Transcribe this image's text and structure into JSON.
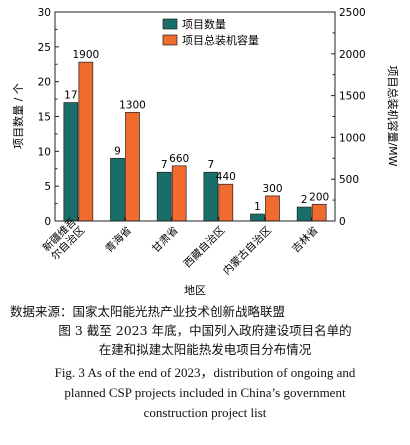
{
  "chart_data": {
    "type": "bar",
    "categories": [
      "新疆维吾尔自治区",
      "青海省",
      "甘肃省",
      "西藏自治区",
      "内蒙古自治区",
      "吉林省"
    ],
    "x_tick_labels": [
      [
        "新疆维吾",
        "尔自治区"
      ],
      [
        "青海省"
      ],
      [
        "甘肃省"
      ],
      [
        "西藏自治区"
      ],
      [
        "内蒙古自治区"
      ],
      [
        "吉林省"
      ]
    ],
    "series": [
      {
        "name": "项目数量",
        "axis": "left",
        "color": "#1a6e6a",
        "values": [
          17,
          9,
          7,
          7,
          1,
          2
        ],
        "labels": [
          "17",
          "9",
          "7",
          "7",
          "1",
          "2"
        ]
      },
      {
        "name": "项目总装机容量",
        "axis": "right",
        "color": "#f26b2e",
        "values": [
          1900,
          1300,
          660,
          440,
          300,
          200
        ],
        "labels": [
          "1900",
          "1300",
          "660",
          "440",
          "300",
          "200"
        ]
      }
    ],
    "xlabel": "地区",
    "ylabel_left": "项目数量 / 个",
    "ylabel_right": "项目总装机容量/MW",
    "ylim_left": [
      0,
      30
    ],
    "yticks_left": [
      "0",
      "5",
      "10",
      "15",
      "20",
      "25",
      "30"
    ],
    "ylim_right": [
      0,
      2500
    ],
    "yticks_right": [
      "0",
      "500",
      "1000",
      "1500",
      "2000",
      "2500"
    ],
    "legend_position": "top-left",
    "grid": false
  },
  "source_text": "数据来源：国家太阳能光热产业技术创新战略联盟",
  "caption_cn_line1": "图 3  截至 2023 年底，中国列入政府建设项目名单的",
  "caption_cn_line2": "在建和拟建太阳能热发电项目分布情况",
  "caption_en_line1": "Fig. 3  As of the end of 2023，distribution of ongoing and",
  "caption_en_line2": "planned CSP projects included in China’s government",
  "caption_en_line3": "construction project list"
}
